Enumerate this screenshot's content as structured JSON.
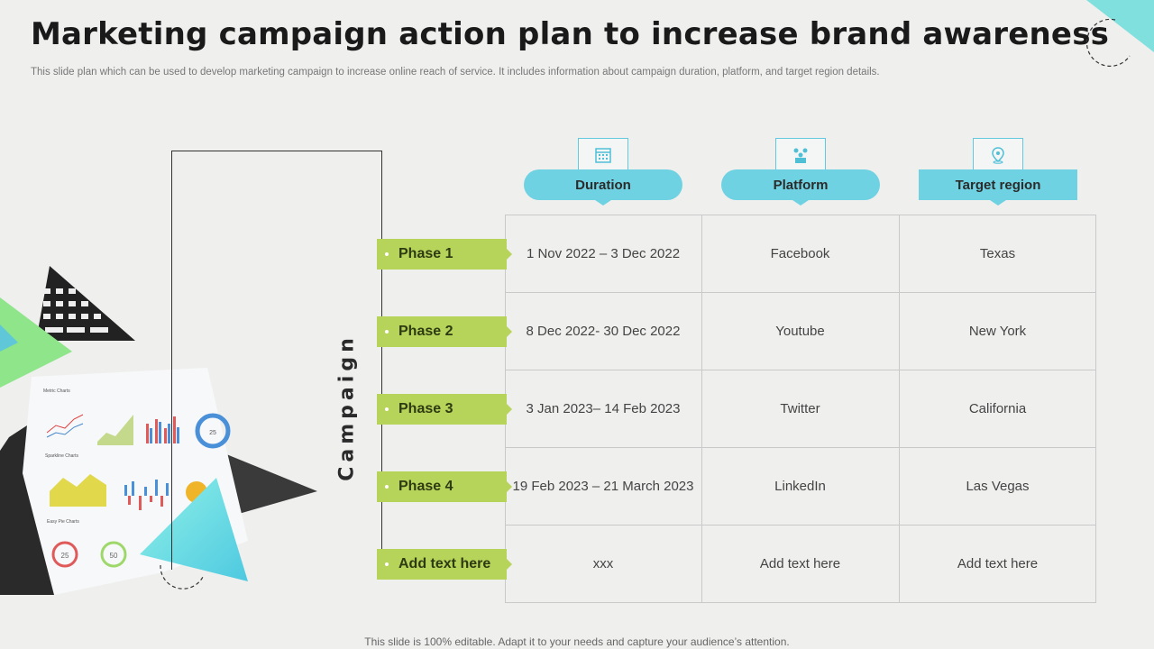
{
  "title": "Marketing campaign action plan to increase brand awareness",
  "subtitle": "This slide plan which can be used to develop marketing campaign to increase online reach of service. It includes information about  campaign  duration, platform, and target region details.",
  "footer": "This slide is 100% editable. Adapt it to your needs and capture your audience’s attention.",
  "campaign_label": "Campaign",
  "columns": [
    {
      "label": "Duration",
      "icon": "calendar-icon"
    },
    {
      "label": "Platform",
      "icon": "social-network-icon"
    },
    {
      "label": "Target region",
      "icon": "location-pin-icon"
    }
  ],
  "rows": [
    {
      "phase": "Phase 1",
      "cells": [
        "1 Nov 2022 – 3 Dec 2022",
        "Facebook",
        "Texas"
      ]
    },
    {
      "phase": "Phase 2",
      "cells": [
        "8 Dec 2022- 30 Dec 2022",
        "Youtube",
        "New York"
      ]
    },
    {
      "phase": "Phase 3",
      "cells": [
        "3 Jan 2023– 14 Feb 2023",
        "Twitter",
        "California"
      ]
    },
    {
      "phase": "Phase 4",
      "cells": [
        "19 Feb 2023 – 21 March 2023",
        "LinkedIn",
        "Las Vegas"
      ]
    },
    {
      "phase": "Add text here",
      "cells": [
        "xxx",
        "Add text here",
        "Add text here"
      ]
    }
  ],
  "illustration": {
    "texts": [
      "Metric Charts",
      "Sparkline Charts",
      "Easy Pie Charts",
      "25",
      "50"
    ]
  },
  "colors": {
    "accent_blue": "#6fd2e3",
    "accent_green": "#b7d45a",
    "background": "#efefee"
  }
}
